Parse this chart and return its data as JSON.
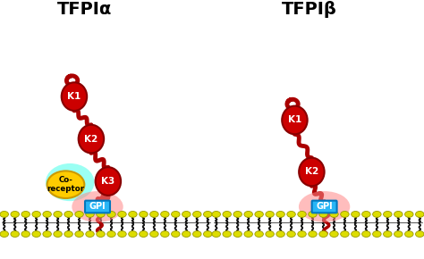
{
  "title_alpha": "TFPIα",
  "title_beta": "TFPIβ",
  "title_fontsize": 14,
  "title_fontweight": "bold",
  "bg_color": "#ffffff",
  "dark_red": "#aa0000",
  "ball_color": "#cc0000",
  "ball_edge": "#880000",
  "gpi_color": "#29b6f6",
  "gpi_edge": "#0277bd",
  "coreceptor_color": "#ffcc00",
  "coreceptor_edge": "#cc9900",
  "coreceptor_glow": "#66ffee",
  "membrane_stripe": "#111111",
  "lipid_color": "#dddd00",
  "lipid_edge": "#999900",
  "pink_glow": "#ff8888",
  "panel_sep": 5.0,
  "xlim": [
    0,
    10
  ],
  "ylim": [
    0,
    5.5
  ]
}
